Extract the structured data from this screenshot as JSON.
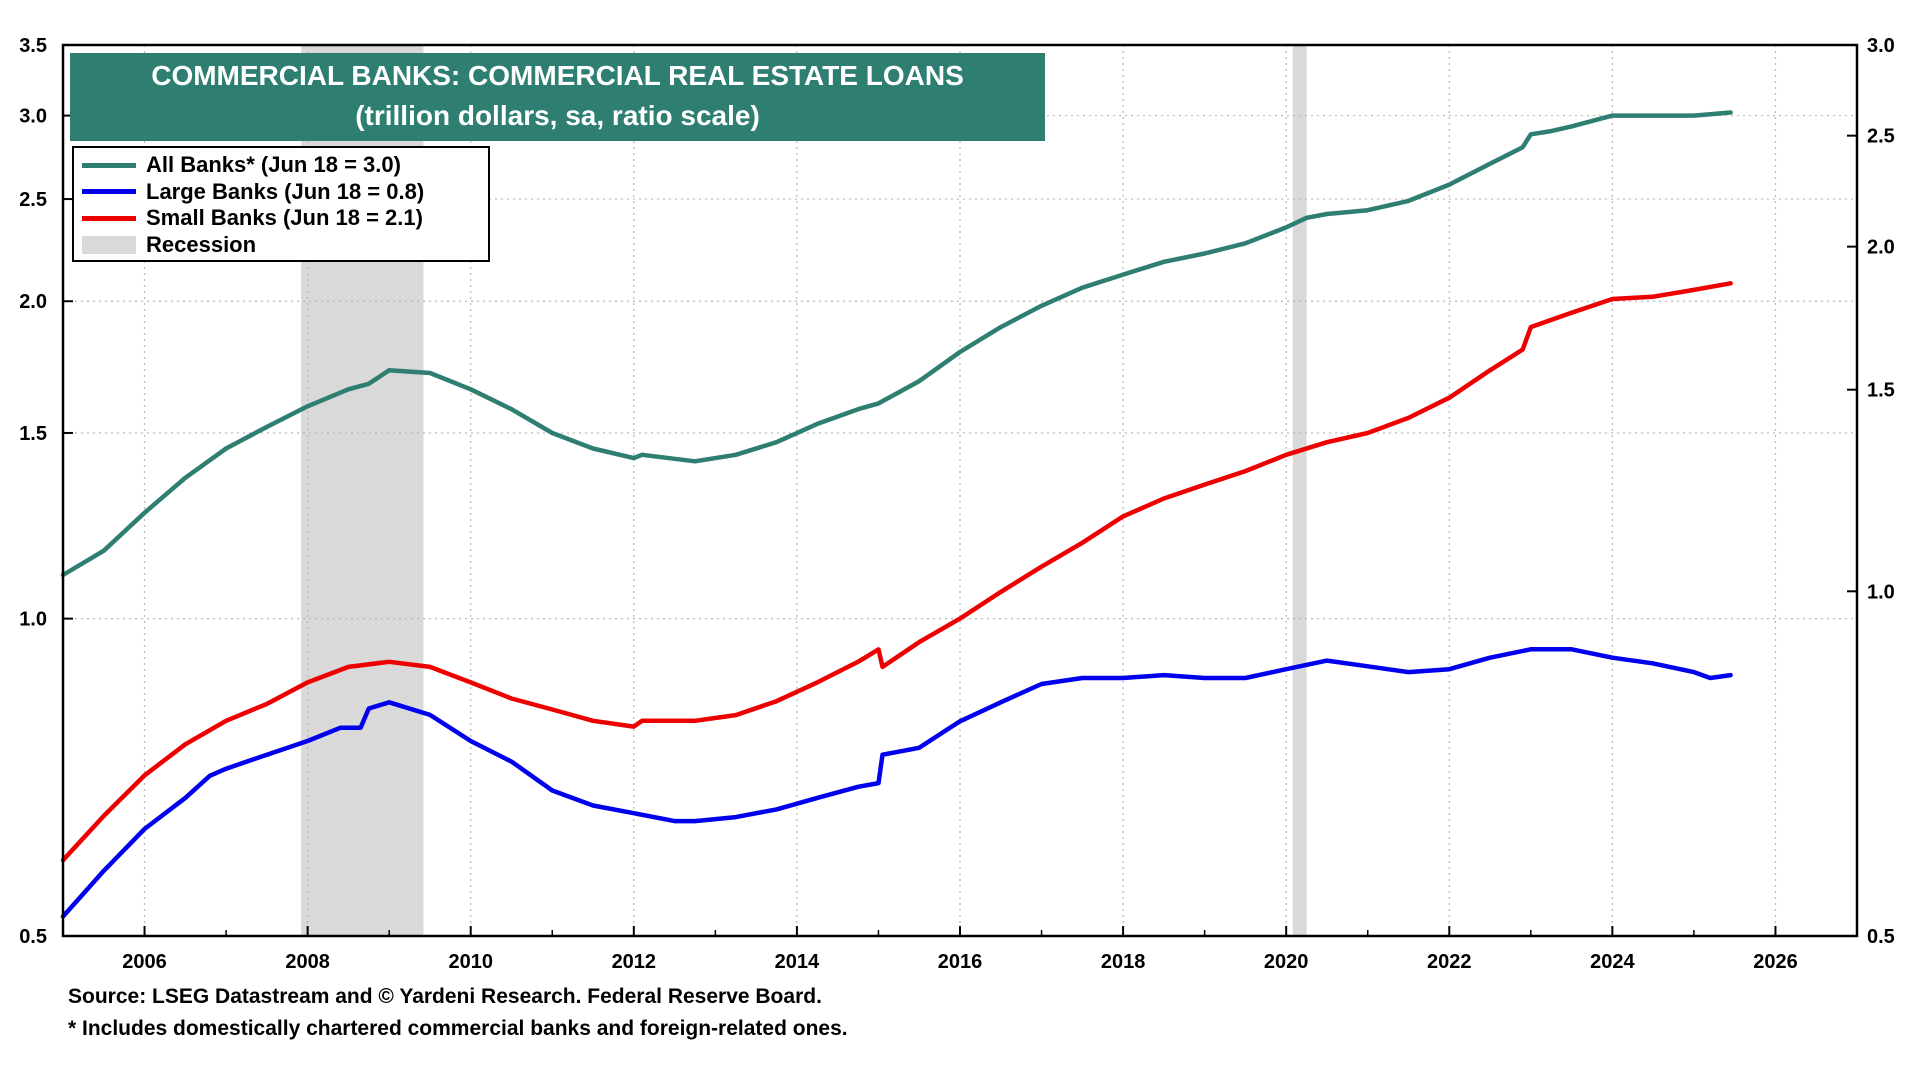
{
  "title": {
    "line1": "COMMERCIAL BANKS: COMMERCIAL REAL ESTATE LOANS",
    "line2": "(trillion dollars, sa, ratio scale)"
  },
  "legend": [
    {
      "label": "All Banks* (Jun 18 = 3.0)",
      "color": "#2e7f72"
    },
    {
      "label": "Large Banks (Jun 18 = 0.8)",
      "color": "#0000ee"
    },
    {
      "label": "Small Banks (Jun 18 = 2.1)",
      "color": "#ee0000"
    },
    {
      "label": "Recession",
      "color": "#d9d9d9"
    }
  ],
  "footer": {
    "source": "Source: LSEG Datastream and © Yardeni Research. Federal Reserve Board.",
    "note": "* Includes domestically chartered commercial banks and foreign-related ones."
  },
  "chart_data": {
    "type": "line",
    "xlim": [
      2005,
      2027
    ],
    "x_ticks": [
      "2006",
      "2008",
      "2010",
      "2012",
      "2014",
      "2016",
      "2018",
      "2020",
      "2022",
      "2024",
      "2026"
    ],
    "y_left": {
      "scale": "log",
      "ylim": [
        0.5,
        3.5
      ],
      "ticks": [
        "0.5",
        "1.0",
        "1.5",
        "2.0",
        "2.5",
        "3.0",
        "3.5"
      ]
    },
    "y_right": {
      "scale": "log",
      "ylim": [
        0.5,
        3.0
      ],
      "ticks": [
        "0.5",
        "1.0",
        "1.5",
        "2.0",
        "2.5",
        "3.0"
      ]
    },
    "recessions": [
      [
        2007.92,
        2009.42
      ],
      [
        2020.08,
        2020.25
      ]
    ],
    "series": [
      {
        "name": "All Banks",
        "axis": "left",
        "color": "#2e7f72",
        "x": [
          2005.0,
          2005.5,
          2006.0,
          2006.5,
          2007.0,
          2007.5,
          2008.0,
          2008.5,
          2008.75,
          2009.0,
          2009.5,
          2010.0,
          2010.5,
          2011.0,
          2011.5,
          2012.0,
          2012.1,
          2012.75,
          2013.25,
          2013.75,
          2014.25,
          2014.75,
          2015.0,
          2015.5,
          2016.0,
          2016.5,
          2017.0,
          2017.5,
          2018.0,
          2018.5,
          2019.0,
          2019.5,
          2020.0,
          2020.25,
          2020.5,
          2021.0,
          2021.5,
          2022.0,
          2022.5,
          2022.9,
          2023.0,
          2023.25,
          2023.5,
          2024.0,
          2024.5,
          2025.0,
          2025.45
        ],
        "values": [
          1.1,
          1.16,
          1.26,
          1.36,
          1.45,
          1.52,
          1.59,
          1.65,
          1.67,
          1.72,
          1.71,
          1.65,
          1.58,
          1.5,
          1.45,
          1.42,
          1.43,
          1.41,
          1.43,
          1.47,
          1.53,
          1.58,
          1.6,
          1.68,
          1.79,
          1.89,
          1.98,
          2.06,
          2.12,
          2.18,
          2.22,
          2.27,
          2.35,
          2.4,
          2.42,
          2.44,
          2.49,
          2.58,
          2.7,
          2.8,
          2.88,
          2.9,
          2.93,
          3.0,
          3.0,
          3.0,
          3.02
        ]
      },
      {
        "name": "Large Banks",
        "axis": "right",
        "color": "#0000ee",
        "x": [
          2005.0,
          2005.5,
          2006.0,
          2006.5,
          2006.8,
          2007.0,
          2007.5,
          2008.0,
          2008.4,
          2008.65,
          2008.75,
          2009.0,
          2009.5,
          2010.0,
          2010.5,
          2011.0,
          2011.5,
          2012.0,
          2012.5,
          2012.75,
          2013.25,
          2013.75,
          2014.25,
          2014.75,
          2015.0,
          2015.05,
          2015.5,
          2016.0,
          2016.5,
          2017.0,
          2017.5,
          2018.0,
          2018.5,
          2019.0,
          2019.5,
          2020.0,
          2020.5,
          2021.0,
          2021.5,
          2022.0,
          2022.5,
          2023.0,
          2023.5,
          2024.0,
          2024.5,
          2025.0,
          2025.2,
          2025.45
        ],
        "values": [
          0.52,
          0.57,
          0.62,
          0.66,
          0.69,
          0.7,
          0.72,
          0.74,
          0.76,
          0.76,
          0.79,
          0.8,
          0.78,
          0.74,
          0.71,
          0.67,
          0.65,
          0.64,
          0.63,
          0.63,
          0.635,
          0.645,
          0.66,
          0.675,
          0.68,
          0.72,
          0.73,
          0.77,
          0.8,
          0.83,
          0.84,
          0.84,
          0.845,
          0.84,
          0.84,
          0.855,
          0.87,
          0.86,
          0.85,
          0.855,
          0.875,
          0.89,
          0.89,
          0.875,
          0.865,
          0.85,
          0.84,
          0.845
        ]
      },
      {
        "name": "Small Banks",
        "axis": "left",
        "color": "#ee0000",
        "x": [
          2005.0,
          2005.5,
          2006.0,
          2006.5,
          2007.0,
          2007.5,
          2008.0,
          2008.5,
          2009.0,
          2009.5,
          2010.0,
          2010.5,
          2011.0,
          2011.5,
          2012.0,
          2012.1,
          2012.75,
          2013.25,
          2013.75,
          2014.25,
          2014.75,
          2015.0,
          2015.05,
          2015.5,
          2016.0,
          2016.5,
          2017.0,
          2017.5,
          2018.0,
          2018.5,
          2019.0,
          2019.5,
          2020.0,
          2020.5,
          2021.0,
          2021.5,
          2022.0,
          2022.5,
          2022.9,
          2023.0,
          2023.25,
          2023.5,
          2024.0,
          2024.5,
          2025.0,
          2025.45
        ],
        "values": [
          0.59,
          0.65,
          0.71,
          0.76,
          0.8,
          0.83,
          0.87,
          0.9,
          0.91,
          0.9,
          0.87,
          0.84,
          0.82,
          0.8,
          0.79,
          0.8,
          0.8,
          0.81,
          0.835,
          0.87,
          0.91,
          0.935,
          0.9,
          0.95,
          1.0,
          1.06,
          1.12,
          1.18,
          1.25,
          1.3,
          1.34,
          1.38,
          1.43,
          1.47,
          1.5,
          1.55,
          1.62,
          1.72,
          1.8,
          1.89,
          1.92,
          1.95,
          2.01,
          2.02,
          2.05,
          2.08
        ]
      }
    ]
  }
}
